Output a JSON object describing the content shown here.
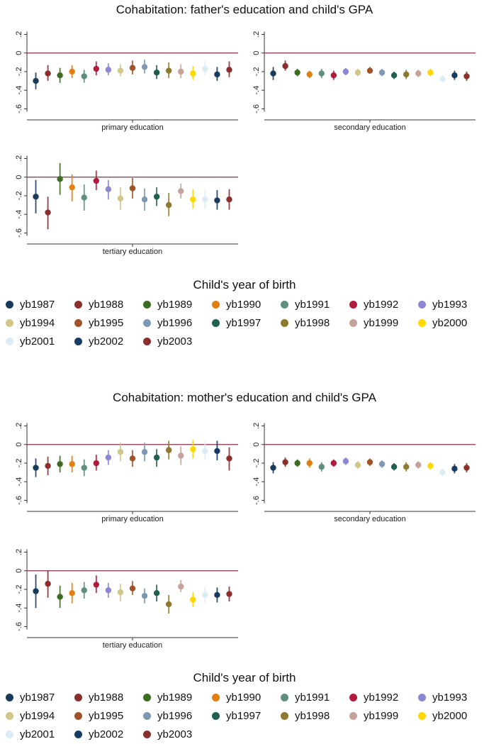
{
  "chart_data": [
    {
      "type": "scatter",
      "title": "Cohabitation: father's education and child's GPA",
      "legend_title": "Child's year of birth",
      "series_names": [
        "yb1987",
        "yb1988",
        "yb1989",
        "yb1990",
        "yb1991",
        "yb1992",
        "yb1993",
        "yb1994",
        "yb1995",
        "yb1996",
        "yb1997",
        "yb1998",
        "yb1999",
        "yb2000",
        "yb2001",
        "yb2002",
        "yb2003"
      ],
      "colors": [
        "#1a3a5c",
        "#8b2e2e",
        "#3d6b22",
        "#e07f12",
        "#5f8f7f",
        "#b01c3c",
        "#8c87d4",
        "#d2c78a",
        "#a0532a",
        "#7d98b3",
        "#1f5f4f",
        "#8e7a2e",
        "#c5a39a",
        "#ffd800",
        "#dcecf4",
        "#173c63",
        "#8b2e2e"
      ],
      "ylim": [
        -0.65,
        0.28
      ],
      "yticks": [
        -0.6,
        -0.4,
        -0.2,
        0,
        0.2
      ],
      "ytick_labels": [
        "-.6",
        "-.4",
        "-.2",
        "0",
        ".2"
      ],
      "reference_line": 0,
      "panels": [
        {
          "xlabel": "primary education",
          "estimates": [
            -0.3,
            -0.22,
            -0.24,
            -0.2,
            -0.25,
            -0.17,
            -0.18,
            -0.19,
            -0.16,
            -0.15,
            -0.21,
            -0.19,
            -0.2,
            -0.22,
            -0.17,
            -0.23,
            -0.18
          ],
          "ci_low": [
            -0.39,
            -0.3,
            -0.32,
            -0.27,
            -0.32,
            -0.24,
            -0.24,
            -0.25,
            -0.23,
            -0.22,
            -0.28,
            -0.27,
            -0.27,
            -0.29,
            -0.24,
            -0.3,
            -0.26
          ],
          "ci_high": [
            -0.21,
            -0.13,
            -0.16,
            -0.13,
            -0.18,
            -0.09,
            -0.11,
            -0.12,
            -0.08,
            -0.07,
            -0.13,
            -0.1,
            -0.12,
            -0.14,
            -0.09,
            -0.15,
            -0.09
          ]
        },
        {
          "xlabel": "secondary education",
          "estimates": [
            -0.22,
            -0.14,
            -0.21,
            -0.23,
            -0.22,
            -0.24,
            -0.2,
            -0.21,
            -0.19,
            -0.21,
            -0.24,
            -0.23,
            -0.22,
            -0.21,
            -0.28,
            -0.24,
            -0.25
          ],
          "ci_low": [
            -0.29,
            -0.19,
            -0.25,
            -0.27,
            -0.27,
            -0.29,
            -0.24,
            -0.25,
            -0.22,
            -0.25,
            -0.28,
            -0.28,
            -0.26,
            -0.25,
            -0.31,
            -0.29,
            -0.3
          ],
          "ci_high": [
            -0.15,
            -0.08,
            -0.17,
            -0.19,
            -0.17,
            -0.19,
            -0.16,
            -0.17,
            -0.15,
            -0.17,
            -0.2,
            -0.18,
            -0.18,
            -0.17,
            -0.24,
            -0.19,
            -0.2
          ]
        },
        {
          "xlabel": "tertiary education",
          "estimates": [
            -0.21,
            -0.38,
            -0.02,
            -0.11,
            -0.22,
            -0.04,
            -0.13,
            -0.23,
            -0.12,
            -0.24,
            -0.21,
            -0.3,
            -0.15,
            -0.24,
            -0.24,
            -0.25,
            -0.24
          ],
          "ci_low": [
            -0.39,
            -0.56,
            -0.19,
            -0.26,
            -0.36,
            -0.14,
            -0.24,
            -0.35,
            -0.23,
            -0.36,
            -0.31,
            -0.42,
            -0.23,
            -0.34,
            -0.34,
            -0.35,
            -0.35
          ],
          "ci_high": [
            -0.03,
            -0.21,
            0.15,
            0.03,
            -0.08,
            0.07,
            -0.03,
            -0.11,
            -0.01,
            -0.12,
            -0.11,
            -0.17,
            -0.07,
            -0.13,
            -0.14,
            -0.14,
            -0.13
          ]
        }
      ]
    },
    {
      "type": "scatter",
      "title": "Cohabitation: mother's education and child's GPA",
      "legend_title": "Child's year of birth",
      "series_names": [
        "yb1987",
        "yb1988",
        "yb1989",
        "yb1990",
        "yb1991",
        "yb1992",
        "yb1993",
        "yb1994",
        "yb1995",
        "yb1996",
        "yb1997",
        "yb1998",
        "yb1999",
        "yb2000",
        "yb2001",
        "yb2002",
        "yb2003"
      ],
      "colors": [
        "#1a3a5c",
        "#8b2e2e",
        "#3d6b22",
        "#e07f12",
        "#5f8f7f",
        "#b01c3c",
        "#8c87d4",
        "#d2c78a",
        "#a0532a",
        "#7d98b3",
        "#1f5f4f",
        "#8e7a2e",
        "#c5a39a",
        "#ffd800",
        "#dcecf4",
        "#173c63",
        "#8b2e2e"
      ],
      "ylim": [
        -0.65,
        0.28
      ],
      "yticks": [
        -0.6,
        -0.4,
        -0.2,
        0,
        0.2
      ],
      "ytick_labels": [
        "-.6",
        "-.4",
        "-.2",
        "0",
        ".2"
      ],
      "reference_line": 0,
      "panels": [
        {
          "xlabel": "primary education",
          "estimates": [
            -0.25,
            -0.23,
            -0.21,
            -0.21,
            -0.25,
            -0.2,
            -0.14,
            -0.08,
            -0.15,
            -0.08,
            -0.14,
            -0.06,
            -0.12,
            -0.05,
            -0.07,
            -0.07,
            -0.15
          ],
          "ci_low": [
            -0.35,
            -0.33,
            -0.3,
            -0.3,
            -0.34,
            -0.28,
            -0.22,
            -0.18,
            -0.24,
            -0.18,
            -0.24,
            -0.16,
            -0.22,
            -0.15,
            -0.17,
            -0.17,
            -0.28
          ],
          "ci_high": [
            -0.15,
            -0.13,
            -0.12,
            -0.12,
            -0.16,
            -0.11,
            -0.06,
            0.02,
            -0.06,
            0.02,
            -0.05,
            0.04,
            -0.02,
            0.05,
            0.03,
            0.04,
            -0.03
          ]
        },
        {
          "xlabel": "secondary education",
          "estimates": [
            -0.25,
            -0.19,
            -0.2,
            -0.2,
            -0.24,
            -0.2,
            -0.18,
            -0.22,
            -0.19,
            -0.21,
            -0.24,
            -0.24,
            -0.22,
            -0.23,
            -0.3,
            -0.26,
            -0.25
          ],
          "ci_low": [
            -0.31,
            -0.24,
            -0.24,
            -0.25,
            -0.29,
            -0.24,
            -0.22,
            -0.26,
            -0.23,
            -0.25,
            -0.28,
            -0.29,
            -0.26,
            -0.27,
            -0.34,
            -0.31,
            -0.3
          ],
          "ci_high": [
            -0.19,
            -0.14,
            -0.16,
            -0.15,
            -0.19,
            -0.16,
            -0.14,
            -0.18,
            -0.15,
            -0.17,
            -0.2,
            -0.19,
            -0.18,
            -0.19,
            -0.26,
            -0.21,
            -0.2
          ]
        },
        {
          "xlabel": "tertiary education",
          "estimates": [
            -0.22,
            -0.14,
            -0.28,
            -0.24,
            -0.21,
            -0.15,
            -0.21,
            -0.23,
            -0.19,
            -0.27,
            -0.24,
            -0.36,
            -0.17,
            -0.31,
            -0.26,
            -0.26,
            -0.25
          ],
          "ci_low": [
            -0.4,
            -0.29,
            -0.4,
            -0.35,
            -0.3,
            -0.24,
            -0.29,
            -0.33,
            -0.26,
            -0.35,
            -0.33,
            -0.46,
            -0.23,
            -0.39,
            -0.34,
            -0.34,
            -0.33
          ],
          "ci_high": [
            -0.04,
            0.0,
            -0.16,
            -0.13,
            -0.12,
            -0.05,
            -0.13,
            -0.14,
            -0.11,
            -0.19,
            -0.15,
            -0.26,
            -0.1,
            -0.23,
            -0.18,
            -0.18,
            -0.17
          ]
        }
      ]
    }
  ]
}
